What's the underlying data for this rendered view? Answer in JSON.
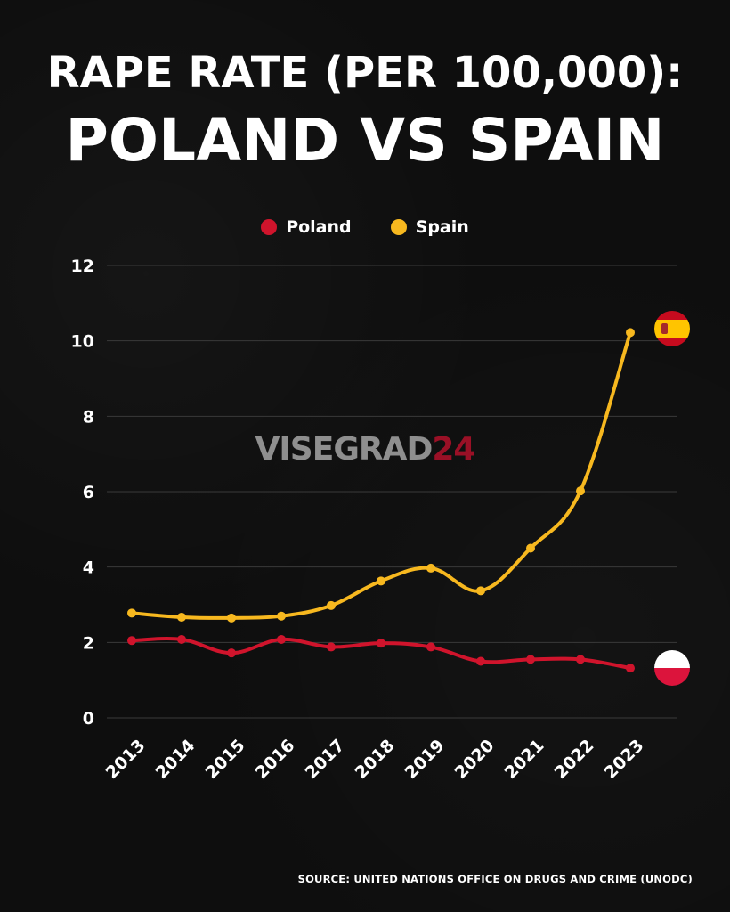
{
  "header": {
    "title_line1": "RAPE RATE (PER 100,000):",
    "title_line2": "POLAND VS SPAIN"
  },
  "watermark": {
    "text_a": "VISEGRAD",
    "text_b": "24"
  },
  "source": "SOURCE: UNITED NATIONS OFFICE ON DRUGS AND CRIME (UNODC)",
  "flags": {
    "spain": "spain-flag-icon",
    "poland": "poland-flag-icon"
  },
  "chart_data": {
    "type": "line",
    "title": "RAPE RATE (PER 100,000): POLAND VS SPAIN",
    "xlabel": "",
    "ylabel": "",
    "x": [
      "2013",
      "2014",
      "2015",
      "2016",
      "2017",
      "2018",
      "2019",
      "2020",
      "2021",
      "2022",
      "2023"
    ],
    "ylim": [
      0,
      12
    ],
    "yticks": [
      "0",
      "2",
      "4",
      "6",
      "8",
      "10",
      "12"
    ],
    "grid": true,
    "legend_position": "top-center",
    "series": [
      {
        "name": "Poland",
        "color": "#d0142c",
        "values": [
          2.05,
          2.08,
          1.72,
          2.08,
          1.88,
          1.98,
          1.88,
          1.5,
          1.55,
          1.55,
          1.32
        ]
      },
      {
        "name": "Spain",
        "color": "#f7b81f",
        "values": [
          2.78,
          2.67,
          2.65,
          2.7,
          2.98,
          3.63,
          3.97,
          3.37,
          4.5,
          6.02,
          10.22
        ]
      }
    ]
  }
}
